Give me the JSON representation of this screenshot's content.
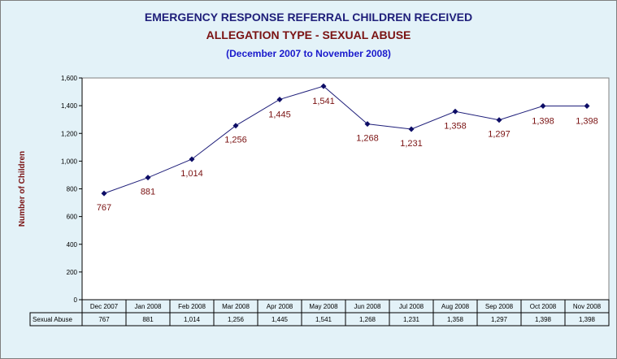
{
  "titles": {
    "line1": "EMERGENCY RESPONSE REFERRAL CHILDREN RECEIVED",
    "line2": "ALLEGATION TYPE - SEXUAL ABUSE",
    "line3": "(December 2007 to November 2008)"
  },
  "colors": {
    "background": "#e3f2f8",
    "plot": "#ffffff",
    "line": "#1f1f7a",
    "marker": "#0d0d66",
    "data_label": "#7a1212"
  },
  "chart_data": {
    "type": "line",
    "title": "EMERGENCY RESPONSE REFERRAL CHILDREN RECEIVED",
    "subtitle": "ALLEGATION TYPE - SEXUAL ABUSE",
    "period": "(December 2007 to November 2008)",
    "ylabel": "Number of Children",
    "xlabel": "",
    "ylim": [
      0,
      1600
    ],
    "yticks": [
      "0",
      "200",
      "400",
      "600",
      "800",
      "1,000",
      "1,200",
      "1,400",
      "1,600"
    ],
    "categories": [
      "Dec 2007",
      "Jan 2008",
      "Feb 2008",
      "Mar 2008",
      "Apr 2008",
      "May 2008",
      "Jun 2008",
      "Jul 2008",
      "Aug 2008",
      "Sep 2008",
      "Oct 2008",
      "Nov 2008"
    ],
    "grid": false,
    "series": [
      {
        "name": "Sexual Abuse",
        "values": [
          767,
          881,
          1014,
          1256,
          1445,
          1541,
          1268,
          1231,
          1358,
          1297,
          1398,
          1398
        ],
        "labels": [
          "767",
          "881",
          "1,014",
          "1,256",
          "1,445",
          "1,541",
          "1,268",
          "1,231",
          "1,358",
          "1,297",
          "1,398",
          "1,398"
        ]
      }
    ],
    "data_table": true
  }
}
